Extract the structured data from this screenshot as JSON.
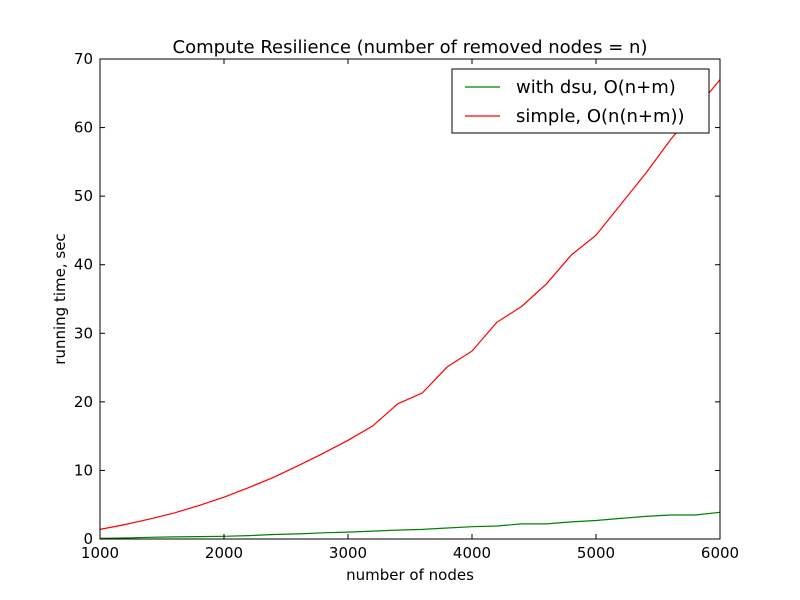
{
  "chart_data": {
    "type": "line",
    "title": "Compute Resilience (number of removed nodes = n)",
    "xlabel": "number of nodes",
    "ylabel": "running time, sec",
    "xlim": [
      1000,
      6000
    ],
    "ylim": [
      0,
      70
    ],
    "xticks": [
      "1000",
      "2000",
      "3000",
      "4000",
      "5000",
      "6000"
    ],
    "yticks": [
      "0",
      "10",
      "20",
      "30",
      "40",
      "50",
      "60",
      "70"
    ],
    "grid": false,
    "legend_position": "top-right",
    "x": [
      1000,
      1200,
      1400,
      1600,
      1800,
      2000,
      2200,
      2400,
      2600,
      2800,
      3000,
      3200,
      3400,
      3600,
      3800,
      4000,
      4200,
      4400,
      4600,
      4800,
      5000,
      5200,
      5400,
      5600,
      5800,
      6000
    ],
    "series": [
      {
        "name": "with dsu, O(n+m)",
        "color": "#008000",
        "values": [
          0.1,
          0.15,
          0.25,
          0.3,
          0.35,
          0.4,
          0.5,
          0.65,
          0.75,
          0.9,
          1.0,
          1.15,
          1.3,
          1.4,
          1.6,
          1.8,
          1.9,
          2.2,
          2.2,
          2.5,
          2.7,
          3.0,
          3.3,
          3.5,
          3.5,
          3.9
        ]
      },
      {
        "name": "simple, O(n(n+m))",
        "color": "#ff0000",
        "values": [
          1.4,
          2.1,
          2.9,
          3.8,
          4.9,
          6.1,
          7.5,
          9.0,
          10.7,
          12.5,
          14.4,
          16.5,
          19.7,
          21.3,
          25.1,
          27.4,
          31.6,
          33.9,
          37.2,
          41.4,
          44.3,
          48.8,
          53.3,
          58.2,
          62.6,
          67.0
        ]
      }
    ]
  }
}
